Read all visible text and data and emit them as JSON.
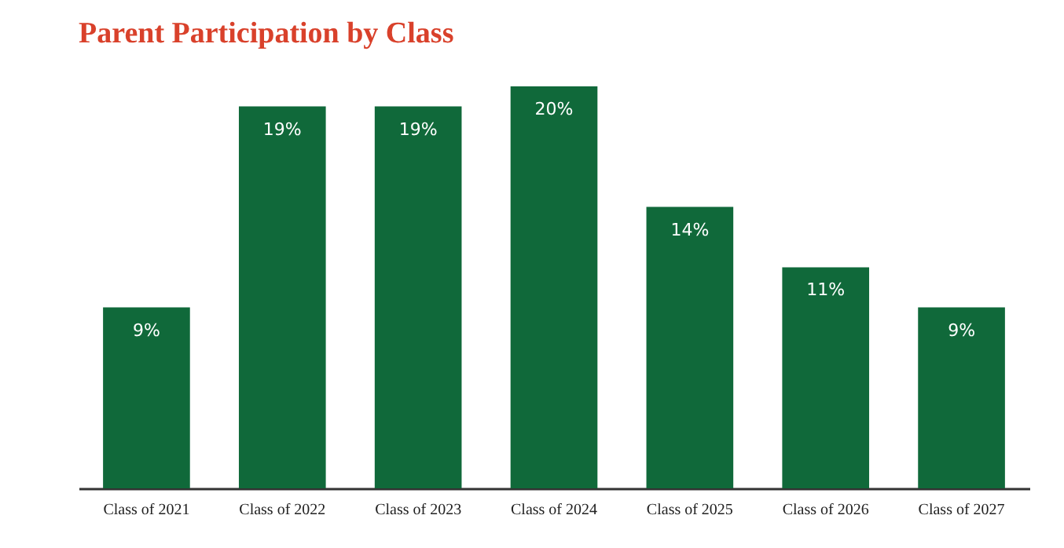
{
  "chart_data": {
    "type": "bar",
    "title": "Parent Participation by Class",
    "categories": [
      "Class of 2021",
      "Class of 2022",
      "Class of 2023",
      "Class of 2024",
      "Class of 2025",
      "Class of 2026",
      "Class of 2027"
    ],
    "values": [
      9,
      19,
      19,
      20,
      14,
      11,
      9
    ],
    "value_labels": [
      "9%",
      "19%",
      "19%",
      "20%",
      "14%",
      "11%",
      "9%"
    ],
    "color": "#10693a",
    "ylim": [
      0,
      20
    ],
    "tick_labels": "x",
    "grid": false
  }
}
